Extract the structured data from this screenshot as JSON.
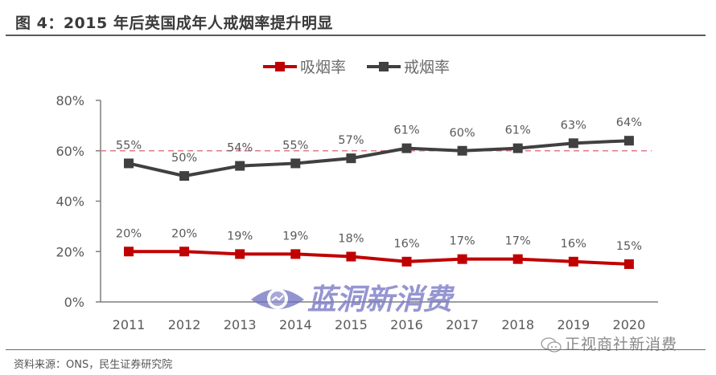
{
  "header": {
    "title": "图 4：2015 年后英国成年人戒烟率提升明显"
  },
  "footer": {
    "source": "资料来源：ONS，民生证券研究院"
  },
  "watermarks": {
    "brand": "蓝洞新消费",
    "wechat": "正视商社新消费"
  },
  "colors": {
    "smoking": "#c00000",
    "quit": "#404040",
    "reference_line": "#e07a8a",
    "axis": "#7f7f7f",
    "label_text": "#595959"
  },
  "legend": {
    "items": [
      {
        "label": "吸烟率",
        "color": "#c00000"
      },
      {
        "label": "戒烟率",
        "color": "#404040"
      }
    ]
  },
  "chart_data": {
    "type": "line",
    "title": "图 4：2015 年后英国成年人戒烟率提升明显",
    "xlabel": "",
    "ylabel": "",
    "categories": [
      "2011",
      "2012",
      "2013",
      "2014",
      "2015",
      "2016",
      "2017",
      "2018",
      "2019",
      "2020"
    ],
    "series": [
      {
        "name": "吸烟率",
        "values": [
          20,
          20,
          19,
          19,
          18,
          16,
          17,
          17,
          16,
          15
        ],
        "labels": [
          "20%",
          "20%",
          "19%",
          "19%",
          "18%",
          "16%",
          "17%",
          "17%",
          "16%",
          "15%"
        ]
      },
      {
        "name": "戒烟率",
        "values": [
          55,
          50,
          54,
          55,
          57,
          61,
          60,
          61,
          63,
          64
        ],
        "labels": [
          "55%",
          "50%",
          "54%",
          "55%",
          "57%",
          "61%",
          "60%",
          "61%",
          "63%",
          "64%"
        ]
      }
    ],
    "y_ticks": [
      "0%",
      "20%",
      "40%",
      "60%",
      "80%"
    ],
    "ylim": [
      0,
      80
    ],
    "reference_line": {
      "value": 60,
      "style": "dashed"
    },
    "grid": false,
    "legend_position": "top"
  }
}
